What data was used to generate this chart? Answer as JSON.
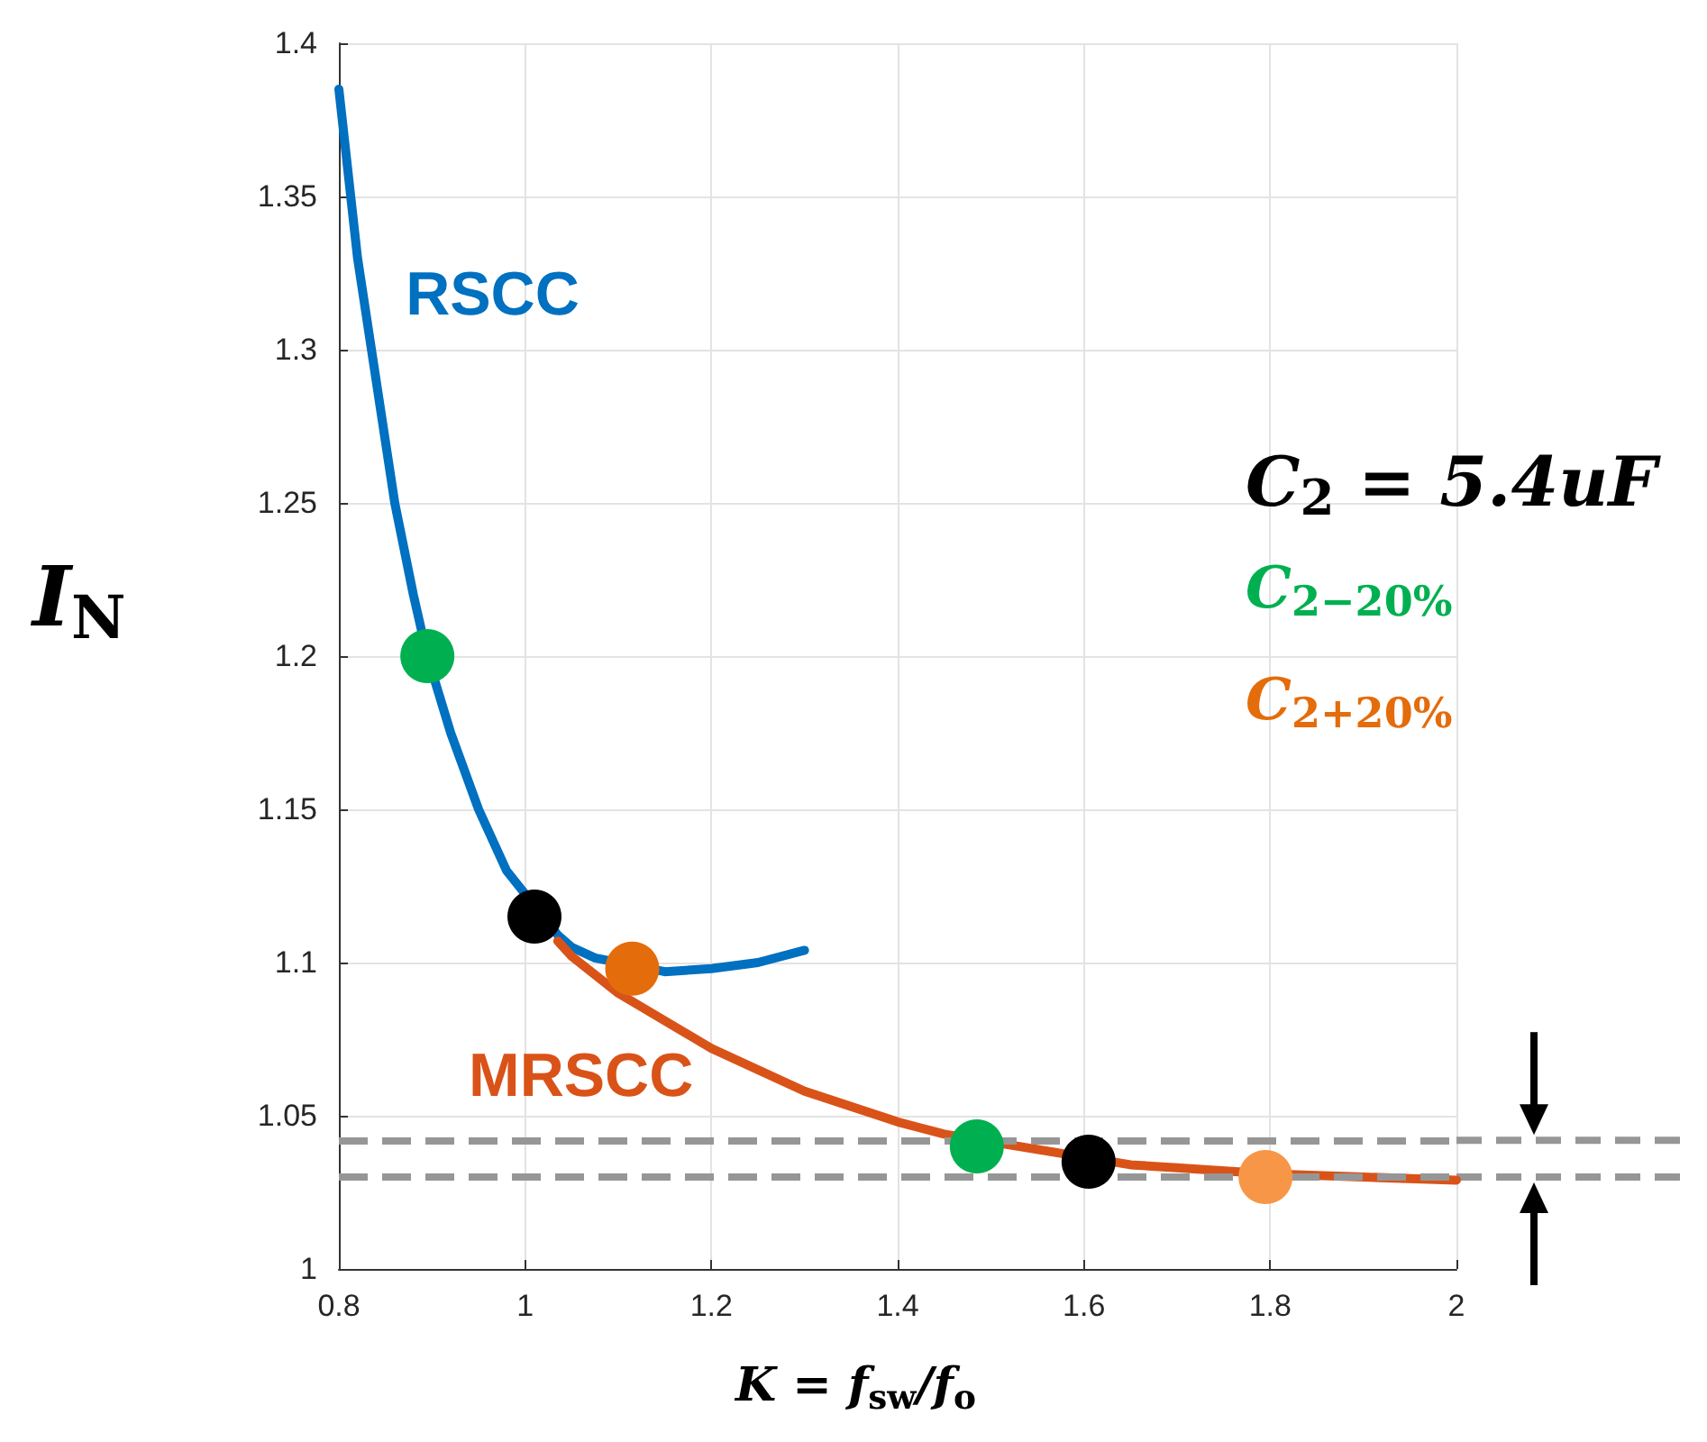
{
  "chart_data": {
    "type": "line",
    "xlabel": "K = f$_{sw}$/f$_{o}$",
    "ylabel": "I$_{N}$",
    "xlim": [
      0.8,
      2
    ],
    "xticks": [
      0.8,
      1,
      1.2,
      1.4,
      1.6,
      1.8,
      2
    ],
    "ylim": [
      1,
      1.4
    ],
    "yticks": [
      1,
      1.05,
      1.1,
      1.15,
      1.2,
      1.25,
      1.3,
      1.35,
      1.4
    ],
    "grid": true,
    "legend": false,
    "marker": "none",
    "line_style": "solid",
    "series": [
      {
        "name": "RSCC",
        "color": "#0070c0",
        "x": [
          0.8,
          0.82,
          0.84,
          0.86,
          0.88,
          0.895,
          0.92,
          0.95,
          0.98,
          1.035,
          1.05,
          1.075,
          1.15,
          1.2,
          1.25,
          1.3
        ],
        "values": [
          1.385,
          1.33,
          1.29,
          1.25,
          1.22,
          1.2,
          1.175,
          1.15,
          1.13,
          1.109,
          1.105,
          1.1015,
          1.097,
          1.098,
          1.1,
          1.104
        ]
      },
      {
        "name": "MRSCC",
        "color": "#d95319",
        "x": [
          1.035,
          1.05,
          1.1,
          1.2,
          1.3,
          1.4,
          1.45,
          1.65,
          1.7,
          1.8,
          1.9,
          2.0
        ],
        "values": [
          1.107,
          1.102,
          1.09,
          1.072,
          1.058,
          1.048,
          1.044,
          1.034,
          1.033,
          1.031,
          1.03,
          1.029
        ]
      },
      {
        "type": "scatter",
        "marker": "circle",
        "x": [
          0.895,
          1.01,
          1.115,
          1.485,
          1.605,
          1.795
        ],
        "values": [
          1.2,
          1.115,
          1.098,
          1.04,
          1.035,
          1.03
        ],
        "colors": [
          "#00b050",
          "#000000",
          "#e46c0a",
          "#00b050",
          "#000000",
          "#f79646"
        ]
      }
    ],
    "ref_lines": [
      {
        "axis": "y",
        "value": 1.042,
        "color": "#969696",
        "line_style": "dashed"
      },
      {
        "axis": "y",
        "value": 1.03,
        "color": "#969696",
        "line_style": "dashed"
      }
    ],
    "annotations": [
      "C$_{2}$ = 5.4uF",
      "C$_{2−20%}$",
      "C$_{2+20%}$"
    ]
  }
}
